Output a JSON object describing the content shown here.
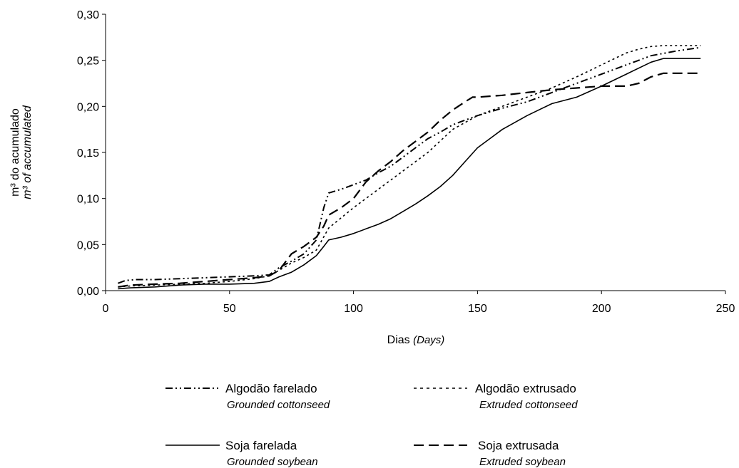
{
  "chart_data": {
    "type": "line",
    "xlabel": "Dias",
    "xlabel_en": "(Days)",
    "ylabel": "m³ do acumulado",
    "ylabel_en": "m³ of accumulated",
    "xlim": [
      0,
      250
    ],
    "ylim": [
      0,
      0.3
    ],
    "x_ticks": [
      "0",
      "50",
      "100",
      "150",
      "200",
      "250"
    ],
    "y_ticks": [
      "0,00",
      "0,05",
      "0,10",
      "0,15",
      "0,20",
      "0,25",
      "0,30"
    ],
    "grid": false,
    "legend_position": "bottom",
    "series": [
      {
        "name": "Algodão farelado",
        "name_en": "Grounded cottonseed",
        "style": "dash-dot-dot",
        "x": [
          5,
          8,
          12,
          20,
          30,
          40,
          50,
          60,
          66,
          70,
          75,
          80,
          85,
          88,
          90,
          95,
          100,
          105,
          110,
          115,
          120,
          125,
          130,
          135,
          140,
          145,
          150,
          160,
          170,
          180,
          190,
          200,
          210,
          220,
          230,
          240
        ],
        "y": [
          0.008,
          0.011,
          0.012,
          0.012,
          0.013,
          0.014,
          0.015,
          0.016,
          0.017,
          0.025,
          0.032,
          0.04,
          0.055,
          0.09,
          0.106,
          0.11,
          0.115,
          0.12,
          0.128,
          0.135,
          0.145,
          0.155,
          0.165,
          0.172,
          0.18,
          0.185,
          0.19,
          0.198,
          0.205,
          0.215,
          0.225,
          0.235,
          0.245,
          0.255,
          0.26,
          0.264
        ]
      },
      {
        "name": "Algodão extrusado",
        "name_en": "Extruded cottonseed",
        "style": "dotted",
        "x": [
          5,
          10,
          20,
          30,
          40,
          50,
          60,
          66,
          70,
          75,
          80,
          85,
          90,
          100,
          110,
          120,
          130,
          140,
          150,
          160,
          170,
          180,
          190,
          200,
          210,
          215,
          220,
          225,
          230,
          240
        ],
        "y": [
          0.004,
          0.005,
          0.006,
          0.007,
          0.008,
          0.01,
          0.013,
          0.016,
          0.022,
          0.03,
          0.036,
          0.044,
          0.068,
          0.09,
          0.11,
          0.13,
          0.15,
          0.175,
          0.19,
          0.2,
          0.21,
          0.22,
          0.232,
          0.245,
          0.258,
          0.262,
          0.265,
          0.266,
          0.266,
          0.266
        ]
      },
      {
        "name": "Soja farelada",
        "name_en": "Grounded soybean",
        "style": "solid",
        "x": [
          5,
          10,
          20,
          30,
          40,
          50,
          60,
          66,
          70,
          75,
          80,
          85,
          88,
          90,
          95,
          100,
          105,
          110,
          115,
          120,
          125,
          130,
          135,
          140,
          145,
          150,
          155,
          160,
          170,
          180,
          190,
          200,
          210,
          220,
          225,
          230,
          240
        ],
        "y": [
          0.002,
          0.003,
          0.004,
          0.006,
          0.007,
          0.007,
          0.008,
          0.01,
          0.015,
          0.02,
          0.028,
          0.038,
          0.048,
          0.055,
          0.058,
          0.062,
          0.067,
          0.072,
          0.078,
          0.086,
          0.094,
          0.103,
          0.113,
          0.125,
          0.14,
          0.155,
          0.165,
          0.175,
          0.19,
          0.203,
          0.21,
          0.222,
          0.235,
          0.248,
          0.252,
          0.252,
          0.252
        ]
      },
      {
        "name": "Soja extrusada",
        "name_en": "Extruded soybean",
        "style": "long-dash",
        "x": [
          5,
          10,
          20,
          30,
          40,
          50,
          60,
          66,
          70,
          75,
          80,
          85,
          88,
          90,
          95,
          100,
          105,
          110,
          115,
          120,
          125,
          130,
          135,
          140,
          145,
          148,
          150,
          160,
          170,
          180,
          190,
          200,
          210,
          215,
          220,
          225,
          230,
          240
        ],
        "y": [
          0.004,
          0.006,
          0.007,
          0.008,
          0.01,
          0.012,
          0.014,
          0.016,
          0.022,
          0.04,
          0.048,
          0.058,
          0.07,
          0.082,
          0.09,
          0.1,
          0.118,
          0.13,
          0.14,
          0.152,
          0.162,
          0.172,
          0.185,
          0.196,
          0.205,
          0.21,
          0.21,
          0.212,
          0.215,
          0.218,
          0.22,
          0.222,
          0.222,
          0.225,
          0.232,
          0.236,
          0.236,
          0.236
        ]
      }
    ]
  }
}
